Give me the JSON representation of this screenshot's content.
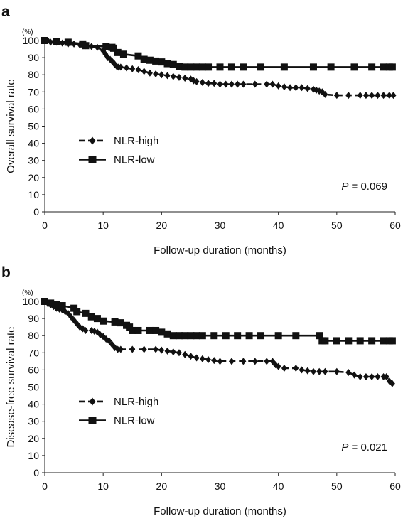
{
  "chart_data": [
    {
      "type": "line",
      "panel_label": "a",
      "unit_label": "(%)",
      "xlabel": "Follow-up duration (months)",
      "ylabel": "Overall survival rate",
      "xlim": [
        0,
        60
      ],
      "ylim": [
        0,
        100
      ],
      "x_ticks": [
        "0",
        "10",
        "20",
        "30",
        "40",
        "50",
        "60"
      ],
      "y_ticks": [
        "0",
        "10",
        "20",
        "30",
        "40",
        "50",
        "60",
        "70",
        "80",
        "90",
        "100"
      ],
      "grid": false,
      "legend_position": "left-middle",
      "p_value": {
        "prefix": "P",
        "text": " = 0.069"
      },
      "series": [
        {
          "name": "NLR-high",
          "line_style": "dashed",
          "marker": "diamond",
          "color": "#111111",
          "points": [
            [
              0,
              100
            ],
            [
              0.5,
              100
            ],
            [
              1,
              99
            ],
            [
              2,
              99
            ],
            [
              3,
              98.5
            ],
            [
              4,
              98
            ],
            [
              5,
              98
            ],
            [
              6,
              97.5
            ],
            [
              7,
              97
            ],
            [
              8,
              96.5
            ],
            [
              9,
              96
            ],
            [
              10,
              94
            ],
            [
              10.4,
              92
            ],
            [
              10.8,
              90
            ],
            [
              11.2,
              89
            ],
            [
              11.5,
              88
            ],
            [
              11.8,
              87
            ],
            [
              12,
              86
            ],
            [
              12.3,
              85
            ],
            [
              12.6,
              84.5
            ],
            [
              13,
              84.5
            ],
            [
              14,
              84
            ],
            [
              15,
              83.5
            ],
            [
              16,
              83
            ],
            [
              17,
              82
            ],
            [
              18,
              81
            ],
            [
              19,
              80.5
            ],
            [
              20,
              80
            ],
            [
              21,
              79.5
            ],
            [
              22,
              79
            ],
            [
              23,
              78.5
            ],
            [
              24,
              78
            ],
            [
              25,
              77.5
            ],
            [
              25.5,
              76.5
            ],
            [
              26,
              76
            ],
            [
              27,
              75.5
            ],
            [
              28,
              75
            ],
            [
              29,
              75
            ],
            [
              30,
              74.5
            ],
            [
              31,
              74.5
            ],
            [
              32,
              74.5
            ],
            [
              33,
              74.5
            ],
            [
              34,
              74.5
            ],
            [
              36,
              74.5
            ],
            [
              38,
              74.5
            ],
            [
              39,
              74.5
            ],
            [
              40,
              73.5
            ],
            [
              41,
              73
            ],
            [
              42,
              72.5
            ],
            [
              43,
              72.5
            ],
            [
              44,
              72.5
            ],
            [
              45,
              72
            ],
            [
              46,
              71.5
            ],
            [
              46.5,
              71
            ],
            [
              47,
              70.5
            ],
            [
              47.5,
              70
            ],
            [
              48,
              68.5
            ],
            [
              50,
              68
            ],
            [
              52,
              68
            ],
            [
              54,
              68
            ],
            [
              55,
              68
            ],
            [
              56,
              68
            ],
            [
              57,
              68
            ],
            [
              58,
              68
            ],
            [
              59,
              68
            ],
            [
              59.7,
              68
            ]
          ]
        },
        {
          "name": "NLR-low",
          "line_style": "solid",
          "marker": "square",
          "color": "#111111",
          "points": [
            [
              0,
              100
            ],
            [
              2,
              99.5
            ],
            [
              4,
              99
            ],
            [
              6.5,
              98
            ],
            [
              7,
              97
            ],
            [
              10.5,
              96.5
            ],
            [
              11.5,
              96
            ],
            [
              11.8,
              95.5
            ],
            [
              12.5,
              93
            ],
            [
              13.5,
              92
            ],
            [
              16,
              91
            ],
            [
              17,
              89
            ],
            [
              18,
              88.5
            ],
            [
              19,
              88
            ],
            [
              20,
              87.5
            ],
            [
              21,
              86.5
            ],
            [
              22,
              86
            ],
            [
              23,
              85
            ],
            [
              24,
              84.5
            ],
            [
              25,
              84.5
            ],
            [
              26,
              84.5
            ],
            [
              27,
              84.5
            ],
            [
              28,
              84.5
            ],
            [
              30,
              84.5
            ],
            [
              32,
              84.5
            ],
            [
              34,
              84.5
            ],
            [
              37,
              84.5
            ],
            [
              41,
              84.5
            ],
            [
              46,
              84.5
            ],
            [
              49,
              84.5
            ],
            [
              53,
              84.5
            ],
            [
              56,
              84.5
            ],
            [
              58,
              84.5
            ],
            [
              59,
              84.5
            ],
            [
              59.5,
              84.5
            ]
          ]
        }
      ]
    },
    {
      "type": "line",
      "panel_label": "b",
      "unit_label": "(%)",
      "xlabel": "Follow-up duration (months)",
      "ylabel": "Disease-free survival rate",
      "xlim": [
        0,
        60
      ],
      "ylim": [
        0,
        100
      ],
      "x_ticks": [
        "0",
        "10",
        "20",
        "30",
        "40",
        "50",
        "60"
      ],
      "y_ticks": [
        "0",
        "10",
        "20",
        "30",
        "40",
        "50",
        "60",
        "70",
        "80",
        "90",
        "100"
      ],
      "grid": false,
      "legend_position": "left-middle",
      "p_value": {
        "prefix": "P",
        "text": " = 0.021"
      },
      "series": [
        {
          "name": "NLR-high",
          "line_style": "dashed",
          "marker": "diamond",
          "color": "#111111",
          "points": [
            [
              0,
              100
            ],
            [
              0.5,
              99
            ],
            [
              1,
              98
            ],
            [
              1.5,
              97
            ],
            [
              2,
              96
            ],
            [
              2.5,
              95.5
            ],
            [
              3,
              95
            ],
            [
              3.5,
              94
            ],
            [
              4,
              93
            ],
            [
              4.5,
              91
            ],
            [
              5,
              89
            ],
            [
              5.5,
              87
            ],
            [
              6,
              85
            ],
            [
              6.5,
              84
            ],
            [
              7,
              83
            ],
            [
              8,
              83
            ],
            [
              8.5,
              82.5
            ],
            [
              9,
              82
            ],
            [
              9.5,
              80.5
            ],
            [
              10,
              79.5
            ],
            [
              10.5,
              78
            ],
            [
              11,
              77
            ],
            [
              11.5,
              75
            ],
            [
              12,
              73
            ],
            [
              12.5,
              72
            ],
            [
              13,
              72
            ],
            [
              15,
              72
            ],
            [
              17,
              72
            ],
            [
              19,
              72
            ],
            [
              20,
              71.5
            ],
            [
              21,
              71
            ],
            [
              22,
              70.5
            ],
            [
              23,
              70
            ],
            [
              24,
              69
            ],
            [
              25,
              68
            ],
            [
              26,
              67
            ],
            [
              27,
              66.5
            ],
            [
              28,
              66
            ],
            [
              29,
              65.5
            ],
            [
              30,
              65
            ],
            [
              32,
              65
            ],
            [
              34,
              65
            ],
            [
              36,
              65
            ],
            [
              38,
              65
            ],
            [
              39,
              65
            ],
            [
              39.5,
              63
            ],
            [
              40,
              62
            ],
            [
              41,
              61
            ],
            [
              43,
              61
            ],
            [
              44,
              60
            ],
            [
              45,
              59.5
            ],
            [
              46,
              59
            ],
            [
              47,
              59
            ],
            [
              48,
              59
            ],
            [
              50,
              59
            ],
            [
              52,
              58.5
            ],
            [
              53,
              57
            ],
            [
              54,
              56
            ],
            [
              55,
              56
            ],
            [
              56,
              56
            ],
            [
              57,
              56
            ],
            [
              58,
              56
            ],
            [
              58.5,
              56
            ],
            [
              59,
              53.5
            ],
            [
              59.5,
              52
            ]
          ]
        },
        {
          "name": "NLR-low",
          "line_style": "solid",
          "marker": "square",
          "color": "#111111",
          "points": [
            [
              0,
              100
            ],
            [
              1,
              99
            ],
            [
              2,
              98
            ],
            [
              3,
              97.5
            ],
            [
              5,
              96
            ],
            [
              5.5,
              94
            ],
            [
              7,
              93
            ],
            [
              8,
              91
            ],
            [
              9,
              90
            ],
            [
              10,
              88.5
            ],
            [
              12,
              88
            ],
            [
              13,
              87.5
            ],
            [
              14,
              86
            ],
            [
              14.5,
              85
            ],
            [
              15,
              83
            ],
            [
              16,
              83
            ],
            [
              18,
              83
            ],
            [
              19,
              83
            ],
            [
              20,
              82
            ],
            [
              21,
              81
            ],
            [
              22,
              80
            ],
            [
              23,
              80
            ],
            [
              24,
              80
            ],
            [
              25,
              80
            ],
            [
              26,
              80
            ],
            [
              27,
              80
            ],
            [
              29,
              80
            ],
            [
              31,
              80
            ],
            [
              33,
              80
            ],
            [
              35,
              80
            ],
            [
              37,
              80
            ],
            [
              40,
              80
            ],
            [
              43,
              80
            ],
            [
              47,
              80
            ],
            [
              47.5,
              77
            ],
            [
              48,
              77
            ],
            [
              50,
              77
            ],
            [
              52,
              77
            ],
            [
              54,
              77
            ],
            [
              56,
              77
            ],
            [
              58,
              77
            ],
            [
              59,
              77
            ],
            [
              59.5,
              77
            ]
          ]
        }
      ]
    }
  ]
}
